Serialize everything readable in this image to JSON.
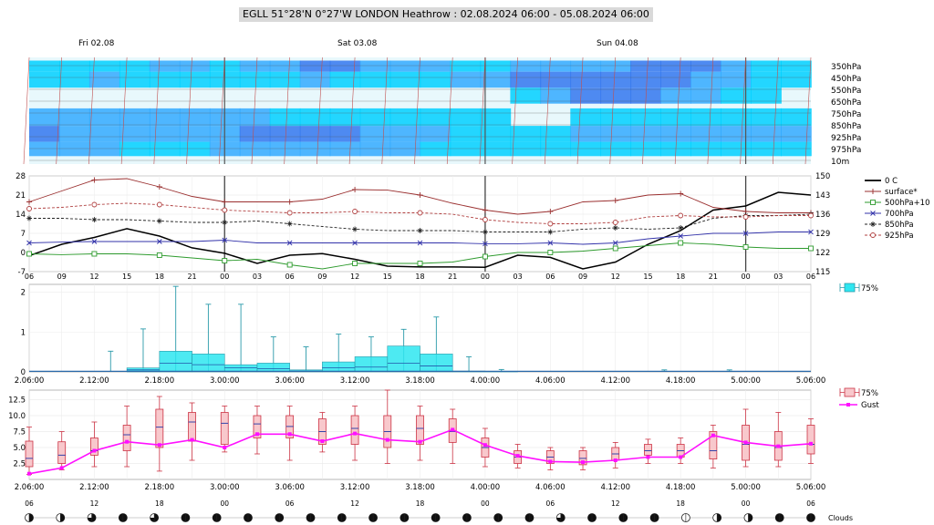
{
  "title": "EGLL 51°28'N 0°27'W LONDON Heathrow : 02.08.2024 06:00 - 05.08.2024 06:00",
  "day_labels": [
    "Fri 02.08",
    "Sat 03.08",
    "Sun 04.08"
  ],
  "chart_data": [
    {
      "type": "heatmap",
      "title": "Cloud cover by pressure level",
      "levels": [
        "350hPa",
        "450hPa",
        "550hPa",
        "650hPa",
        "750hPa",
        "850hPa",
        "925hPa",
        "975hPa",
        "10m"
      ],
      "bands": [
        {
          "from": 350,
          "to": 420,
          "intensity": [
            1,
            1,
            1,
            1,
            2,
            2,
            1,
            2,
            2,
            3,
            3,
            2,
            2,
            2,
            1,
            1,
            2,
            2,
            2,
            2,
            3,
            3,
            3,
            2,
            1,
            1
          ]
        },
        {
          "from": 420,
          "to": 520,
          "intensity": [
            1,
            1,
            2,
            1,
            1,
            1,
            1,
            1,
            1,
            2,
            1,
            1,
            1,
            1,
            2,
            2,
            3,
            3,
            3,
            3,
            3,
            3,
            2,
            2,
            1,
            1
          ]
        },
        {
          "from": 520,
          "to": 620,
          "intensity": [
            0,
            0,
            0,
            0,
            0,
            0,
            0,
            0,
            0,
            0,
            0,
            0,
            0,
            0,
            0,
            0,
            1,
            2,
            3,
            3,
            3,
            2,
            2,
            1,
            1,
            0
          ]
        },
        {
          "from": 650,
          "to": 760,
          "intensity": [
            2,
            2,
            2,
            2,
            2,
            2,
            2,
            2,
            1,
            1,
            1,
            1,
            1,
            1,
            1,
            1,
            0,
            0,
            1,
            1,
            1,
            1,
            1,
            1,
            1,
            1
          ]
        },
        {
          "from": 760,
          "to": 860,
          "intensity": [
            3,
            2,
            2,
            2,
            2,
            2,
            2,
            3,
            3,
            3,
            3,
            2,
            2,
            2,
            1,
            1,
            1,
            1,
            2,
            2,
            2,
            2,
            2,
            2,
            2,
            2
          ]
        },
        {
          "from": 860,
          "to": 950,
          "intensity": [
            2,
            2,
            2,
            1,
            1,
            1,
            2,
            2,
            2,
            2,
            2,
            2,
            2,
            1,
            1,
            1,
            1,
            1,
            1,
            1,
            1,
            1,
            1,
            1,
            1,
            1
          ]
        }
      ]
    },
    {
      "type": "line",
      "title": "Temperature by level",
      "x": [
        "06",
        "09",
        "12",
        "15",
        "18",
        "21",
        "00",
        "03",
        "06",
        "09",
        "12",
        "15",
        "18",
        "21",
        "00",
        "03",
        "06",
        "09",
        "12",
        "15",
        "18",
        "21",
        "00",
        "03",
        "06"
      ],
      "yleft_ticks": [
        -7,
        0,
        7,
        14,
        21,
        28
      ],
      "yright_ticks": [
        115,
        122,
        129,
        136,
        143,
        150
      ],
      "ylim": [
        -7,
        28
      ],
      "series": [
        {
          "name": "0 C",
          "axis": "right",
          "values": [
            120.8,
            125.0,
            127.5,
            130.7,
            128.0,
            123.7,
            121.7,
            118.0,
            121.0,
            121.6,
            119.5,
            117.0,
            116.7,
            116.7,
            116.6,
            121.0,
            120.2,
            116.0,
            118.5,
            125.0,
            130.0,
            137.5,
            139.0,
            144.0,
            143.0
          ]
        },
        {
          "name": "surface*",
          "axis": "left",
          "values": [
            18.5,
            22.5,
            26.5,
            27.0,
            24.0,
            20.5,
            18.5,
            18.5,
            18.5,
            19.5,
            23.0,
            22.8,
            21.0,
            18.0,
            15.5,
            14.0,
            15.0,
            18.5,
            19.0,
            21.0,
            21.5,
            16.5,
            15.0,
            14.5,
            14.5
          ]
        },
        {
          "name": "500hPa+10",
          "axis": "left",
          "values": [
            -0.5,
            -0.8,
            -0.5,
            -0.5,
            -1.0,
            -2.0,
            -3.0,
            -2.5,
            -4.5,
            -6.0,
            -4.0,
            -4.0,
            -4.0,
            -3.5,
            -1.5,
            0.0,
            0.0,
            0.5,
            1.5,
            2.5,
            3.5,
            3.0,
            2.0,
            1.5,
            1.5
          ]
        },
        {
          "name": "700hPa",
          "axis": "left",
          "values": [
            3.5,
            3.8,
            4.0,
            4.0,
            4.0,
            4.0,
            4.5,
            3.5,
            3.5,
            3.5,
            3.5,
            3.5,
            3.5,
            3.5,
            3.2,
            3.2,
            3.5,
            3.0,
            3.5,
            5.0,
            6.0,
            7.0,
            7.0,
            7.5,
            7.5
          ]
        },
        {
          "name": "850hPa",
          "axis": "left",
          "values": [
            12.5,
            12.5,
            12.0,
            12.0,
            11.5,
            11.0,
            11.0,
            11.5,
            10.5,
            9.5,
            8.5,
            8.0,
            8.0,
            8.0,
            7.5,
            7.5,
            7.5,
            8.5,
            9.0,
            8.5,
            9.0,
            12.5,
            13.5,
            13.5,
            14.0
          ]
        },
        {
          "name": "925hPa",
          "axis": "left",
          "values": [
            16.0,
            16.5,
            17.5,
            18.0,
            17.5,
            16.5,
            15.5,
            15.0,
            14.5,
            14.5,
            15.0,
            14.5,
            14.5,
            14.0,
            12.0,
            11.0,
            10.5,
            10.5,
            11.0,
            13.0,
            13.5,
            13.0,
            13.0,
            13.5,
            13.5
          ]
        }
      ]
    },
    {
      "type": "bar",
      "title": "Precipitation",
      "x_ticks": [
        "2.06:00",
        "2.12:00",
        "2.18:00",
        "3.00:00",
        "3.06:00",
        "3.12:00",
        "3.18:00",
        "4.00:00",
        "4.06:00",
        "4.12:00",
        "4.18:00",
        "5.00:00",
        "5.06:00"
      ],
      "y_ticks": [
        "0",
        "1",
        "2"
      ],
      "ylim": [
        0,
        2.2
      ],
      "legend": "75%",
      "boxes": [
        {
          "start": 1.0,
          "end": 1.5,
          "q75": 0.0,
          "max": 0.52,
          "median": 0.0
        },
        {
          "start": 1.5,
          "end": 2.0,
          "q75": 0.1,
          "max": 1.08,
          "median": 0.05
        },
        {
          "start": 2.0,
          "end": 2.5,
          "q75": 0.52,
          "max": 2.15,
          "median": 0.22
        },
        {
          "start": 2.5,
          "end": 3.0,
          "q75": 0.45,
          "max": 1.7,
          "median": 0.18
        },
        {
          "start": 3.0,
          "end": 3.5,
          "q75": 0.18,
          "max": 1.7,
          "median": 0.1
        },
        {
          "start": 3.5,
          "end": 4.0,
          "q75": 0.22,
          "max": 0.88,
          "median": 0.08
        },
        {
          "start": 4.0,
          "end": 4.5,
          "q75": 0.05,
          "max": 0.63,
          "median": 0.02
        },
        {
          "start": 4.5,
          "end": 5.0,
          "q75": 0.25,
          "max": 0.95,
          "median": 0.1
        },
        {
          "start": 5.0,
          "end": 5.5,
          "q75": 0.38,
          "max": 0.88,
          "median": 0.12
        },
        {
          "start": 5.5,
          "end": 6.0,
          "q75": 0.65,
          "max": 1.07,
          "median": 0.22
        },
        {
          "start": 6.0,
          "end": 6.5,
          "q75": 0.45,
          "max": 1.38,
          "median": 0.15
        },
        {
          "start": 6.5,
          "end": 7.0,
          "q75": 0.02,
          "max": 0.38,
          "median": 0.0
        },
        {
          "start": 7.0,
          "end": 7.5,
          "q75": 0.01,
          "max": 0.06,
          "median": 0.0
        },
        {
          "start": 9.5,
          "end": 10.0,
          "q75": 0.0,
          "max": 0.05,
          "median": 0.0
        },
        {
          "start": 10.5,
          "end": 11.0,
          "q75": 0.0,
          "max": 0.05,
          "median": 0.0
        }
      ]
    },
    {
      "type": "line",
      "title": "Wind speed and gust",
      "x_ticks": [
        "2.06:00",
        "2.12:00",
        "2.18:00",
        "3.00:00",
        "3.06:00",
        "3.12:00",
        "3.18:00",
        "4.00:00",
        "4.06:00",
        "4.12:00",
        "4.18:00",
        "5.00:00",
        "5.06:00"
      ],
      "y_ticks": [
        "2.5",
        "5.0",
        "7.5",
        "10.0",
        "12.5"
      ],
      "ylim": [
        0,
        14
      ],
      "legend": [
        "75%",
        "Gust"
      ],
      "boxes": [
        {
          "min": 0.8,
          "q1": 2.0,
          "median": 3.3,
          "q3": 6.0,
          "max": 8.2
        },
        {
          "min": 1.5,
          "q1": 2.5,
          "median": 3.8,
          "q3": 5.9,
          "max": 7.5
        },
        {
          "min": 2.0,
          "q1": 3.8,
          "median": 4.5,
          "q3": 6.5,
          "max": 9.0
        },
        {
          "min": 2.0,
          "q1": 4.5,
          "median": 7.0,
          "q3": 8.5,
          "max": 11.5
        },
        {
          "min": 1.3,
          "q1": 5.0,
          "median": 8.2,
          "q3": 11.0,
          "max": 13.0
        },
        {
          "min": 3.0,
          "q1": 6.0,
          "median": 9.0,
          "q3": 10.5,
          "max": 12.0
        },
        {
          "min": 4.3,
          "q1": 5.5,
          "median": 8.8,
          "q3": 10.5,
          "max": 11.5
        },
        {
          "min": 4.0,
          "q1": 6.5,
          "median": 8.7,
          "q3": 10.0,
          "max": 11.5
        },
        {
          "min": 3.0,
          "q1": 6.5,
          "median": 8.3,
          "q3": 10.0,
          "max": 11.5
        },
        {
          "min": 4.3,
          "q1": 5.5,
          "median": 7.5,
          "q3": 9.5,
          "max": 10.5
        },
        {
          "min": 3.0,
          "q1": 5.5,
          "median": 8.0,
          "q3": 10.0,
          "max": 11.5
        },
        {
          "min": 2.5,
          "q1": 5.0,
          "median": 7.5,
          "q3": 10.0,
          "max": 14.0
        },
        {
          "min": 3.0,
          "q1": 5.5,
          "median": 8.0,
          "q3": 10.0,
          "max": 11.5
        },
        {
          "min": 2.5,
          "q1": 5.8,
          "median": 7.5,
          "q3": 9.5,
          "max": 11.0
        },
        {
          "min": 2.0,
          "q1": 3.5,
          "median": 5.0,
          "q3": 6.5,
          "max": 8.0
        },
        {
          "min": 1.8,
          "q1": 2.5,
          "median": 3.5,
          "q3": 4.5,
          "max": 5.5
        },
        {
          "min": 1.5,
          "q1": 2.5,
          "median": 3.5,
          "q3": 4.5,
          "max": 5.0
        },
        {
          "min": 1.5,
          "q1": 2.3,
          "median": 3.3,
          "q3": 4.5,
          "max": 5.0
        },
        {
          "min": 1.8,
          "q1": 3.0,
          "median": 4.0,
          "q3": 5.0,
          "max": 5.8
        },
        {
          "min": 2.5,
          "q1": 3.8,
          "median": 4.5,
          "q3": 5.5,
          "max": 6.3
        },
        {
          "min": 2.5,
          "q1": 3.5,
          "median": 4.5,
          "q3": 5.5,
          "max": 6.5
        },
        {
          "min": 1.8,
          "q1": 3.2,
          "median": 4.5,
          "q3": 7.5,
          "max": 8.5
        },
        {
          "min": 2.0,
          "q1": 3.0,
          "median": 5.5,
          "q3": 8.5,
          "max": 11.0
        },
        {
          "min": 2.0,
          "q1": 3.0,
          "median": 5.0,
          "q3": 7.5,
          "max": 10.5
        },
        {
          "min": 2.5,
          "q1": 4.0,
          "median": 5.5,
          "q3": 8.5,
          "max": 9.5
        }
      ],
      "gust": [
        0.9,
        1.8,
        4.5,
        5.9,
        5.4,
        6.2,
        5.0,
        7.1,
        7.1,
        6.0,
        7.2,
        6.2,
        5.9,
        7.8,
        5.4,
        3.7,
        2.8,
        2.7,
        3.0,
        3.5,
        3.5,
        6.9,
        5.8,
        5.2,
        5.6
      ]
    }
  ],
  "heatmap_levels": [
    "350hPa",
    "450hPa",
    "550hPa",
    "650hPa",
    "750hPa",
    "850hPa",
    "925hPa",
    "975hPa",
    "10m"
  ],
  "temp_legend": [
    "0 C",
    "surface*",
    "500hPa+10",
    "700hPa",
    "850hPa",
    "925hPa"
  ],
  "temp_left_ticks": [
    "28",
    "21",
    "14",
    "7",
    "0",
    "-7"
  ],
  "temp_right_ticks": [
    "150",
    "143",
    "136",
    "129",
    "122",
    "115"
  ],
  "temp_hours": [
    "06",
    "09",
    "12",
    "15",
    "18",
    "21",
    "00",
    "03",
    "06",
    "09",
    "12",
    "15",
    "18",
    "21",
    "00",
    "03",
    "06",
    "09",
    "12",
    "15",
    "18",
    "21",
    "00",
    "03",
    "06"
  ],
  "cloud_hours": [
    "06",
    "12",
    "18",
    "00",
    "06",
    "12",
    "18",
    "00",
    "06",
    "12",
    "18",
    "00",
    "06"
  ],
  "clouds_label": "Clouds",
  "cloud_cover": [
    0.5,
    0.75,
    0.5,
    0.5,
    0.75,
    1,
    1,
    1,
    0.75,
    1,
    1,
    1,
    1,
    0.5,
    1,
    0.75,
    1,
    1,
    1,
    0.75,
    1,
    1,
    1,
    1,
    1,
    1,
    1,
    0.75,
    1,
    1,
    1,
    1,
    1,
    1,
    0.75,
    1,
    1,
    0.75,
    1,
    0.75,
    1,
    0,
    0,
    0,
    0.5,
    0.5,
    0.5,
    0.75,
    1,
    1,
    1,
    0.5
  ]
}
